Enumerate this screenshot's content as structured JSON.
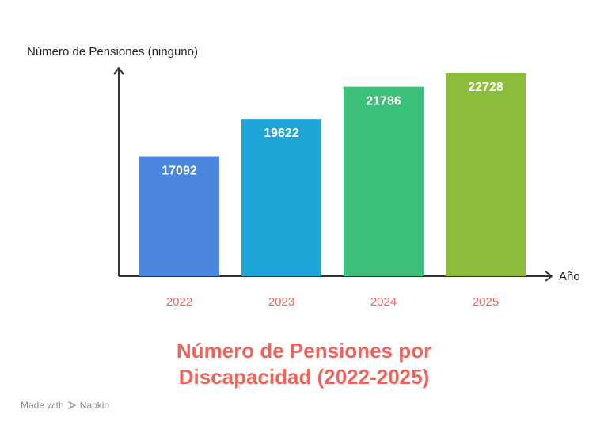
{
  "chart_data": {
    "type": "bar",
    "title_lines": [
      "Número de Pensiones por",
      "Discapacidad (2022-2025)"
    ],
    "ylabel": "Número de Pensiones (ninguno)",
    "xlabel": "Año",
    "categories": [
      "2022",
      "2023",
      "2024",
      "2025"
    ],
    "values": [
      17092,
      19622,
      21786,
      22728
    ],
    "bar_colors": [
      "#4a86e0",
      "#1fa6d8",
      "#3cc07a",
      "#8cbd3a"
    ],
    "ylim": [
      0,
      22728
    ],
    "grid": false,
    "legend": "none"
  },
  "colors": {
    "title": "#f0635a",
    "category_label": "#f0635a",
    "axis": "#333333",
    "footer": "#8a8a8a"
  },
  "footer": {
    "made_with": "Made with",
    "brand": "Napkin",
    "brand_icon": "napkin-logo-icon"
  }
}
